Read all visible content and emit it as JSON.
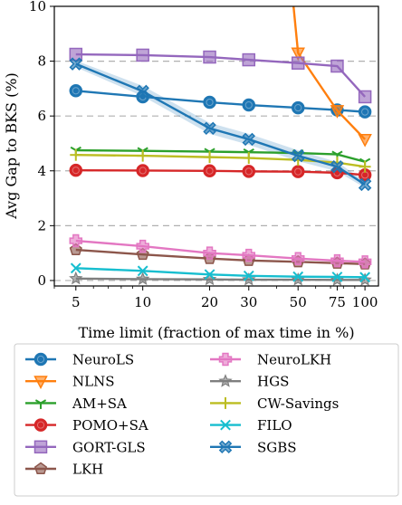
{
  "chart_data": {
    "type": "line",
    "title": "",
    "xlabel": "Time limit (fraction of max time in %)",
    "ylabel": "Avg Gap to BKS (%)",
    "x_scale": "log",
    "x_ticks": [
      5,
      10,
      20,
      30,
      50,
      75,
      100
    ],
    "x_tick_labels": [
      "5",
      "10",
      "20",
      "30",
      "50",
      "75",
      "100"
    ],
    "xlim": [
      4,
      115
    ],
    "y_ticks": [
      0,
      2,
      4,
      6,
      8,
      10
    ],
    "y_tick_labels": [
      "0",
      "2",
      "4",
      "6",
      "8",
      "10"
    ],
    "ylim": [
      -0.2,
      10
    ],
    "grid": "horizontal dashed",
    "legend_position": "below plot, two columns",
    "x": [
      5,
      10,
      20,
      30,
      50,
      75,
      100
    ],
    "series": [
      {
        "name": "NeuroLS",
        "color": "#1f77b4",
        "marker": "circle",
        "values": [
          6.92,
          6.7,
          6.5,
          6.4,
          6.3,
          6.22,
          6.15
        ]
      },
      {
        "name": "NLNS",
        "color": "#ff7f0e",
        "marker": "triangle-down",
        "values": [
          null,
          null,
          null,
          null,
          8.3,
          6.2,
          5.15
        ],
        "extends_above_top": true
      },
      {
        "name": "AM+SA",
        "color": "#2ca02c",
        "marker": "tri-down",
        "values": [
          4.75,
          4.73,
          4.7,
          4.68,
          4.65,
          4.6,
          4.33
        ]
      },
      {
        "name": "POMO+SA",
        "color": "#d62728",
        "marker": "circle",
        "values": [
          4.02,
          4.01,
          4.0,
          3.98,
          3.97,
          3.93,
          3.85
        ]
      },
      {
        "name": "GORT-GLS",
        "color": "#9467bd",
        "marker": "square",
        "values": [
          8.25,
          8.22,
          8.15,
          8.05,
          7.93,
          7.82,
          6.7
        ]
      },
      {
        "name": "LKH",
        "color": "#8c564b",
        "marker": "pentagon",
        "values": [
          1.12,
          0.95,
          0.8,
          0.73,
          0.68,
          0.63,
          0.6
        ]
      },
      {
        "name": "NeuroLKH",
        "color": "#e377c2",
        "marker": "plus-filled",
        "values": [
          1.45,
          1.25,
          1.0,
          0.92,
          0.8,
          0.72,
          0.68
        ]
      },
      {
        "name": "HGS",
        "color": "#7f7f7f",
        "marker": "star",
        "values": [
          0.07,
          0.05,
          0.04,
          0.03,
          0.03,
          0.02,
          0.02
        ]
      },
      {
        "name": "CW-Savings",
        "color": "#bcbd22",
        "marker": "plus",
        "values": [
          4.58,
          4.55,
          4.5,
          4.47,
          4.4,
          4.3,
          4.15
        ]
      },
      {
        "name": "FILO",
        "color": "#17becf",
        "marker": "x",
        "values": [
          0.45,
          0.35,
          0.22,
          0.17,
          0.14,
          0.13,
          0.12
        ]
      },
      {
        "name": "SGBS",
        "color": "#1f77b4",
        "marker": "x-filled",
        "values": [
          7.9,
          6.9,
          5.55,
          5.15,
          4.55,
          4.15,
          3.5
        ],
        "band_lower": [
          7.78,
          6.72,
          5.35,
          4.95,
          4.35,
          3.98,
          3.38
        ],
        "band_upper": [
          8.02,
          7.1,
          5.75,
          5.35,
          4.75,
          4.32,
          3.62
        ]
      }
    ]
  }
}
